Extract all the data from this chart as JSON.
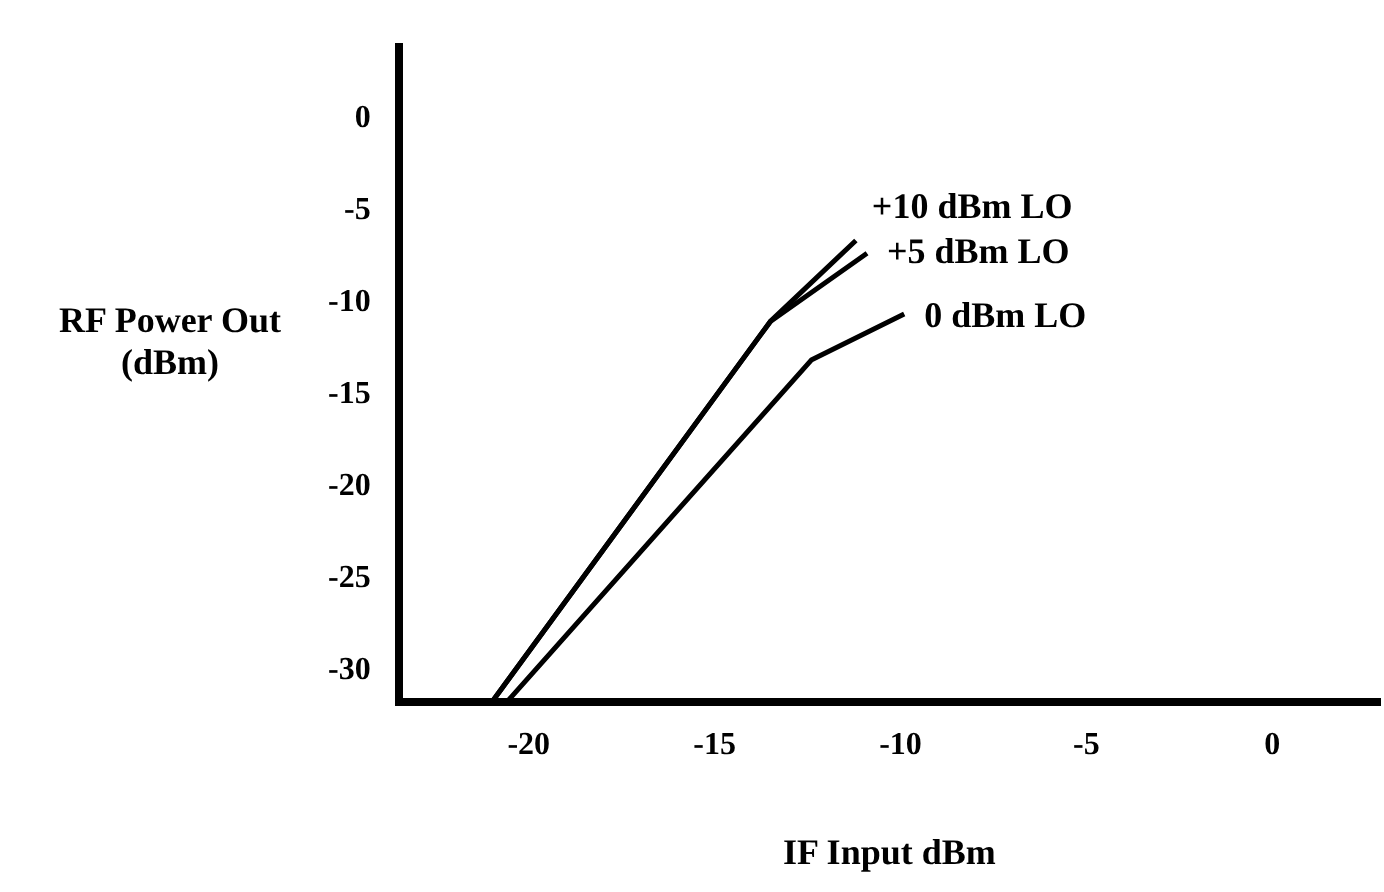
{
  "chart_data": {
    "type": "line",
    "xlabel": "IF Input dBm",
    "ylabel": "RF Power Out (dBm)",
    "xlim": [
      -23.5,
      2.9
    ],
    "ylim": [
      -31.7,
      3.9
    ],
    "xticks": [
      -20,
      -15,
      -10,
      -5,
      0
    ],
    "yticks": [
      -30,
      -25,
      -20,
      -15,
      -10,
      -5,
      0
    ],
    "grid": false,
    "legend": false,
    "marker": "none",
    "line_style": "solid",
    "series": [
      {
        "name": "+10 dBm LO",
        "color": "#000000",
        "x": [
          -21.0,
          -13.5,
          -11.2
        ],
        "values": [
          -31.7,
          -11.0,
          -6.6
        ]
      },
      {
        "name": "+5 dBm LO",
        "color": "#000000",
        "x": [
          -21.0,
          -13.5,
          -10.9
        ],
        "values": [
          -31.7,
          -11.0,
          -7.3
        ]
      },
      {
        "name": "0 dBm LO",
        "color": "#000000",
        "x": [
          -20.6,
          -12.4,
          -9.9
        ],
        "values": [
          -31.7,
          -13.1,
          -10.6
        ]
      }
    ]
  }
}
